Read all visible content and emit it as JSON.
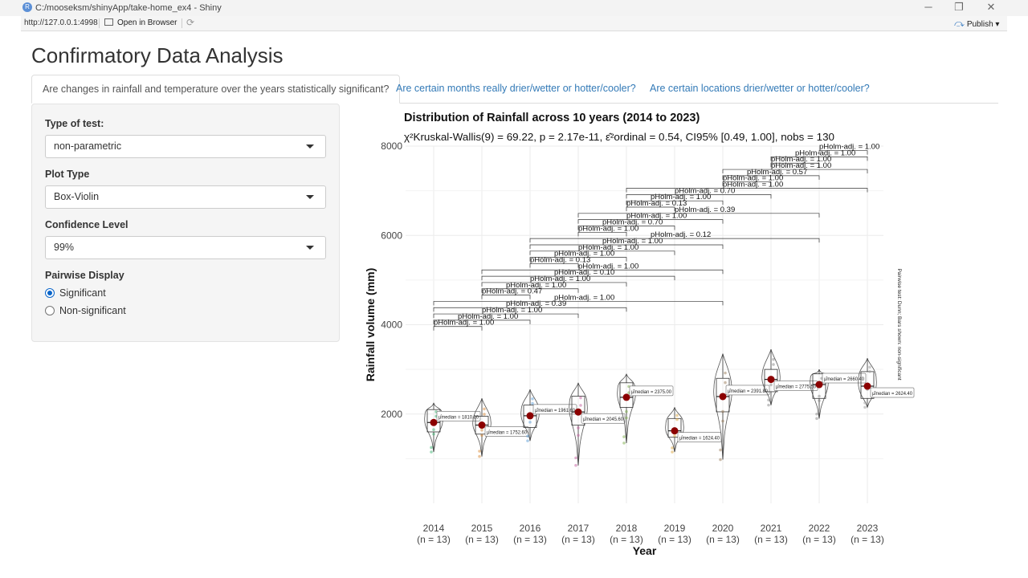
{
  "window": {
    "title": "C:/mooseksm/shinyApp/take-home_ex4 - Shiny",
    "app_icon_letter": "R",
    "minimize": "─",
    "maximize": "❐",
    "close": "✕"
  },
  "toolbar": {
    "url": "http://127.0.0.1:4998",
    "open_in_browser": "Open in Browser",
    "refresh_icon": "⟳",
    "publish": "Publish",
    "publish_icon": "⤼",
    "publish_caret": "▾"
  },
  "page": {
    "title": "Confirmatory Data Analysis"
  },
  "tabs": [
    {
      "label": "Are changes in rainfall and temperature over the years statistically significant?",
      "active": true
    },
    {
      "label": "Are certain months really drier/wetter or hotter/cooler?",
      "active": false
    },
    {
      "label": "Are certain locations drier/wetter or hotter/cooler?",
      "active": false
    }
  ],
  "sidebar": {
    "test_type": {
      "label": "Type of test:",
      "value": "non-parametric"
    },
    "plot_type": {
      "label": "Plot Type",
      "value": "Box-Violin"
    },
    "confidence": {
      "label": "Confidence Level",
      "value": "99%"
    },
    "pairwise": {
      "label": "Pairwise Display",
      "options": [
        {
          "label": "Significant",
          "checked": true
        },
        {
          "label": "Non-significant",
          "checked": false
        }
      ]
    }
  },
  "chart_data": {
    "type": "box-violin",
    "title": "Distribution of Rainfall across 10 years (2014 to 2023)",
    "subtitle": "χ²Kruskal-Wallis(9) = 69.22, p = 2.17e-11, ε̂²ordinal = 0.54, CI95% [0.49, 1.00], nobs = 130",
    "xlabel": "Year",
    "ylabel": "Rainfall volume (mm)",
    "ylim": [
      0,
      8000
    ],
    "yticks": [
      2000,
      4000,
      6000,
      8000
    ],
    "categories": [
      "2014",
      "2015",
      "2016",
      "2017",
      "2018",
      "2019",
      "2020",
      "2021",
      "2022",
      "2023"
    ],
    "n_labels": [
      "(n = 13)",
      "(n = 13)",
      "(n = 13)",
      "(n = 13)",
      "(n = 13)",
      "(n = 13)",
      "(n = 13)",
      "(n = 13)",
      "(n = 13)",
      "(n = 13)"
    ],
    "medians": [
      1810.6,
      1752.6,
      1961.6,
      2045.6,
      2375.0,
      1624.4,
      2391.8,
      2775.5,
      2660.4,
      2624.4
    ],
    "median_labels": [
      "μ̂median = 1810.60",
      "μ̂median = 1752.60",
      "μ̂median = 1961.60",
      "μ̂median = 2045.60",
      "μ̂median = 2375.00",
      "μ̂median = 1624.40",
      "μ̂median = 2391.80",
      "μ̂median = 2775.50",
      "μ̂median = 2660.40",
      "μ̂median = 2624.40"
    ],
    "q1": [
      1600,
      1550,
      1700,
      1750,
      2150,
      1480,
      2050,
      2500,
      2350,
      2350
    ],
    "q3": [
      2100,
      1950,
      2200,
      2400,
      2700,
      1900,
      2800,
      3000,
      2900,
      2950
    ],
    "whisker_low": [
      1150,
      1050,
      1400,
      850,
      1350,
      1150,
      980,
      2200,
      1900,
      2150
    ],
    "whisker_high": [
      2250,
      2350,
      2550,
      2700,
      2900,
      2150,
      3350,
      3450,
      3000,
      3250
    ],
    "side_note": "Pairwise test: Dunn; Bars shown: non-significant",
    "pairwise": [
      {
        "from": "2014",
        "to": "2015",
        "label": "pHolm-adj. = 1.00"
      },
      {
        "from": "2014",
        "to": "2016",
        "label": "pHolm-adj. = 1.00"
      },
      {
        "from": "2014",
        "to": "2017",
        "label": "pHolm-adj. = 1.00"
      },
      {
        "from": "2014",
        "to": "2018",
        "label": "pHolm-adj. = 0.39"
      },
      {
        "from": "2014",
        "to": "2020",
        "label": "pHolm-adj. = 1.00"
      },
      {
        "from": "2015",
        "to": "2016",
        "label": "pHolm-adj. = 0.47"
      },
      {
        "from": "2015",
        "to": "2017",
        "label": "pHolm-adj. = 1.00"
      },
      {
        "from": "2015",
        "to": "2018",
        "label": "pHolm-adj. = 1.00"
      },
      {
        "from": "2015",
        "to": "2019",
        "label": "pHolm-adj. = 0.10"
      },
      {
        "from": "2015",
        "to": "2020",
        "label": "pHolm-adj. = 1.00"
      },
      {
        "from": "2016",
        "to": "2017",
        "label": "pHolm-adj. = 0.13"
      },
      {
        "from": "2016",
        "to": "2018",
        "label": "pHolm-adj. = 1.00"
      },
      {
        "from": "2016",
        "to": "2019",
        "label": "pHolm-adj. = 1.00"
      },
      {
        "from": "2016",
        "to": "2020",
        "label": "pHolm-adj. = 1.00"
      },
      {
        "from": "2016",
        "to": "2022",
        "label": "pHolm-adj. = 0.12"
      },
      {
        "from": "2017",
        "to": "2018",
        "label": "pHolm-adj. = 1.00"
      },
      {
        "from": "2017",
        "to": "2019",
        "label": "pHolm-adj. = 0.70"
      },
      {
        "from": "2017",
        "to": "2020",
        "label": "pHolm-adj. = 1.00"
      },
      {
        "from": "2017",
        "to": "2022",
        "label": "pHolm-adj. = 0.39"
      },
      {
        "from": "2018",
        "to": "2019",
        "label": "pHolm-adj. = 0.13"
      },
      {
        "from": "2018",
        "to": "2020",
        "label": "pHolm-adj. = 1.00"
      },
      {
        "from": "2018",
        "to": "2021",
        "label": "pHolm-adj. = 0.70"
      },
      {
        "from": "2018",
        "to": "2023",
        "label": "pHolm-adj. = 1.00"
      },
      {
        "from": "2020",
        "to": "2021",
        "label": "pHolm-adj. = 1.00"
      },
      {
        "from": "2020",
        "to": "2022",
        "label": "pHolm-adj. = 0.57"
      },
      {
        "from": "2020",
        "to": "2023",
        "label": "pHolm-adj. = 1.00"
      },
      {
        "from": "2021",
        "to": "2022",
        "label": "pHolm-adj. = 1.00"
      },
      {
        "from": "2021",
        "to": "2023",
        "label": "pHolm-adj. = 1.00"
      },
      {
        "from": "2022",
        "to": "2023",
        "label": "pHolm-adj. = 1.00"
      }
    ]
  }
}
